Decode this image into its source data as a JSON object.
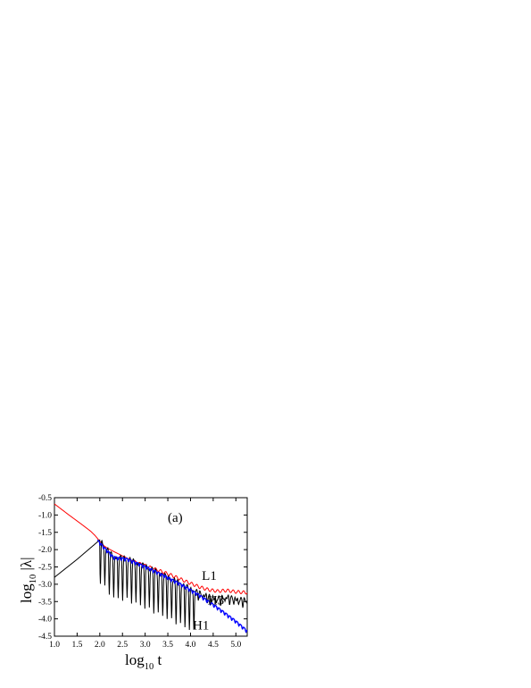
{
  "chart_data": {
    "type": "line",
    "panel_label": "(a)",
    "xlabel": {
      "base": "log",
      "sub": "10",
      "rest": " t"
    },
    "ylabel": {
      "base": "log",
      "sub": "10",
      "rest": " |λ|"
    },
    "xlim": [
      1.0,
      5.25
    ],
    "ylim": [
      -4.5,
      -0.5
    ],
    "x_ticks": [
      "1.0",
      "1.5",
      "2.0",
      "2.5",
      "3.0",
      "3.5",
      "4.0",
      "4.5",
      "5.0"
    ],
    "x_tick_values": [
      1.0,
      1.5,
      2.0,
      2.5,
      3.0,
      3.5,
      4.0,
      4.5,
      5.0
    ],
    "y_ticks": [
      "-0.5",
      "-1.0",
      "-1.5",
      "-2.0",
      "-2.5",
      "-3.0",
      "-3.5",
      "-4.0",
      "-4.5"
    ],
    "y_tick_values": [
      -0.5,
      -1.0,
      -1.5,
      -2.0,
      -2.5,
      -3.0,
      -3.5,
      -4.0,
      -4.5
    ],
    "series": [
      {
        "name": "L1",
        "color": "#ff0000",
        "x": [
          1.0,
          1.3,
          1.6,
          1.8,
          1.9,
          2.0,
          2.1,
          2.2,
          2.3,
          2.5,
          2.7,
          3.0,
          3.3,
          3.6,
          3.9,
          4.2,
          4.4,
          4.6,
          4.8,
          5.0,
          5.25
        ],
        "y": [
          -0.68,
          -0.98,
          -1.27,
          -1.47,
          -1.6,
          -1.76,
          -1.9,
          -1.98,
          -2.05,
          -2.18,
          -2.3,
          -2.45,
          -2.6,
          -2.75,
          -2.92,
          -3.08,
          -3.16,
          -3.2,
          -3.18,
          -3.22,
          -3.24
        ]
      },
      {
        "name": "H3",
        "color": "#000000",
        "x": [
          1.0,
          1.5,
          2.0,
          2.3,
          2.6,
          3.0,
          3.4,
          3.8,
          4.0,
          4.2,
          4.4,
          4.6,
          4.8,
          5.0,
          5.25
        ],
        "y": [
          -2.8,
          -2.28,
          -1.72,
          -2.2,
          -2.25,
          -2.47,
          -2.72,
          -2.98,
          -3.12,
          -3.25,
          -3.35,
          -3.4,
          -3.36,
          -3.42,
          -3.46
        ]
      },
      {
        "name": "H1",
        "color": "#0000ff",
        "x": [
          1.95,
          2.3,
          2.6,
          3.0,
          3.4,
          3.8,
          4.2,
          4.6,
          5.0,
          5.25
        ],
        "y": [
          -1.72,
          -2.2,
          -2.25,
          -2.47,
          -2.72,
          -2.99,
          -3.3,
          -3.66,
          -4.05,
          -4.33
        ]
      }
    ],
    "series_labels": [
      "L1",
      "H3",
      "H1"
    ],
    "grid": false
  }
}
